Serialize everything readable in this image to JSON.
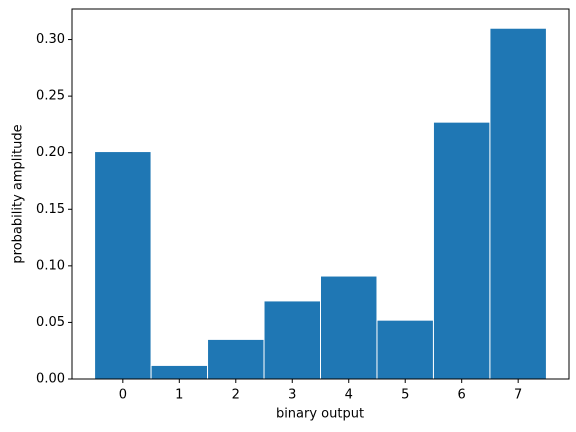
{
  "chart_data": {
    "type": "bar",
    "x": [
      0,
      1,
      2,
      3,
      4,
      5,
      6,
      7
    ],
    "values": [
      0.201,
      0.012,
      0.035,
      0.069,
      0.091,
      0.052,
      0.227,
      0.31
    ],
    "bar_width": 1,
    "color": "#1f77b4",
    "edgecolor": "#ffffff",
    "xlabel": "binary output",
    "ylabel": "probability amplitude",
    "xlim": [
      -0.9,
      7.9
    ],
    "ylim": [
      0,
      0.327
    ],
    "xticks": [
      0,
      1,
      2,
      3,
      4,
      5,
      6,
      7
    ],
    "yticks": [
      {
        "value": 0,
        "label": "0.00"
      },
      {
        "value": 0.05,
        "label": "0.05"
      },
      {
        "value": 0.1,
        "label": "0.10"
      },
      {
        "value": 0.15,
        "label": "0.15"
      },
      {
        "value": 0.2,
        "label": "0.20"
      },
      {
        "value": 0.25,
        "label": "0.25"
      },
      {
        "value": 0.3,
        "label": "0.30"
      }
    ],
    "grid": false
  }
}
